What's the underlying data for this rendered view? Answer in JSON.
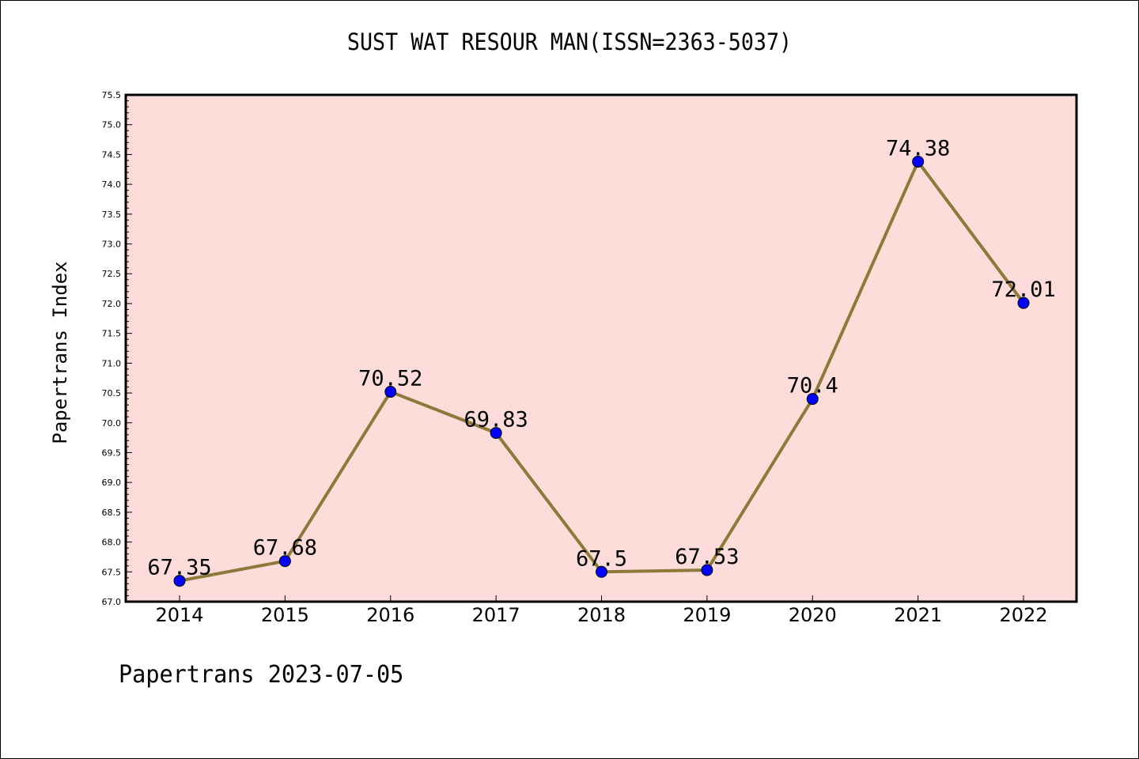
{
  "chart_data": {
    "type": "line",
    "title": "SUST WAT RESOUR MAN(ISSN=2363-5037)",
    "ylabel": "Papertrans Index",
    "xlabel": "",
    "categories": [
      "2014",
      "2015",
      "2016",
      "2017",
      "2018",
      "2019",
      "2020",
      "2021",
      "2022"
    ],
    "values": [
      67.35,
      67.68,
      70.52,
      69.83,
      67.5,
      67.53,
      70.4,
      74.38,
      72.01
    ],
    "data_labels": [
      "67.35",
      "67.68",
      "70.52",
      "69.83",
      "67.5",
      "67.53",
      "70.4",
      "74.38",
      "72.01"
    ],
    "ylim": [
      67.0,
      75.5
    ],
    "yticks": [
      "67.0",
      "67.5",
      "68.0",
      "68.5",
      "69.0",
      "69.5",
      "70.0",
      "70.5",
      "71.0",
      "71.5",
      "72.0",
      "72.5",
      "73.0",
      "73.5",
      "74.0",
      "74.5",
      "75.0",
      "75.5"
    ],
    "grid": false,
    "colors": {
      "plot_background": "#fddcda",
      "line": "#8b7a3a",
      "marker": "#0000ff",
      "axis": "#000000"
    }
  },
  "footer": "Papertrans 2023-07-05"
}
